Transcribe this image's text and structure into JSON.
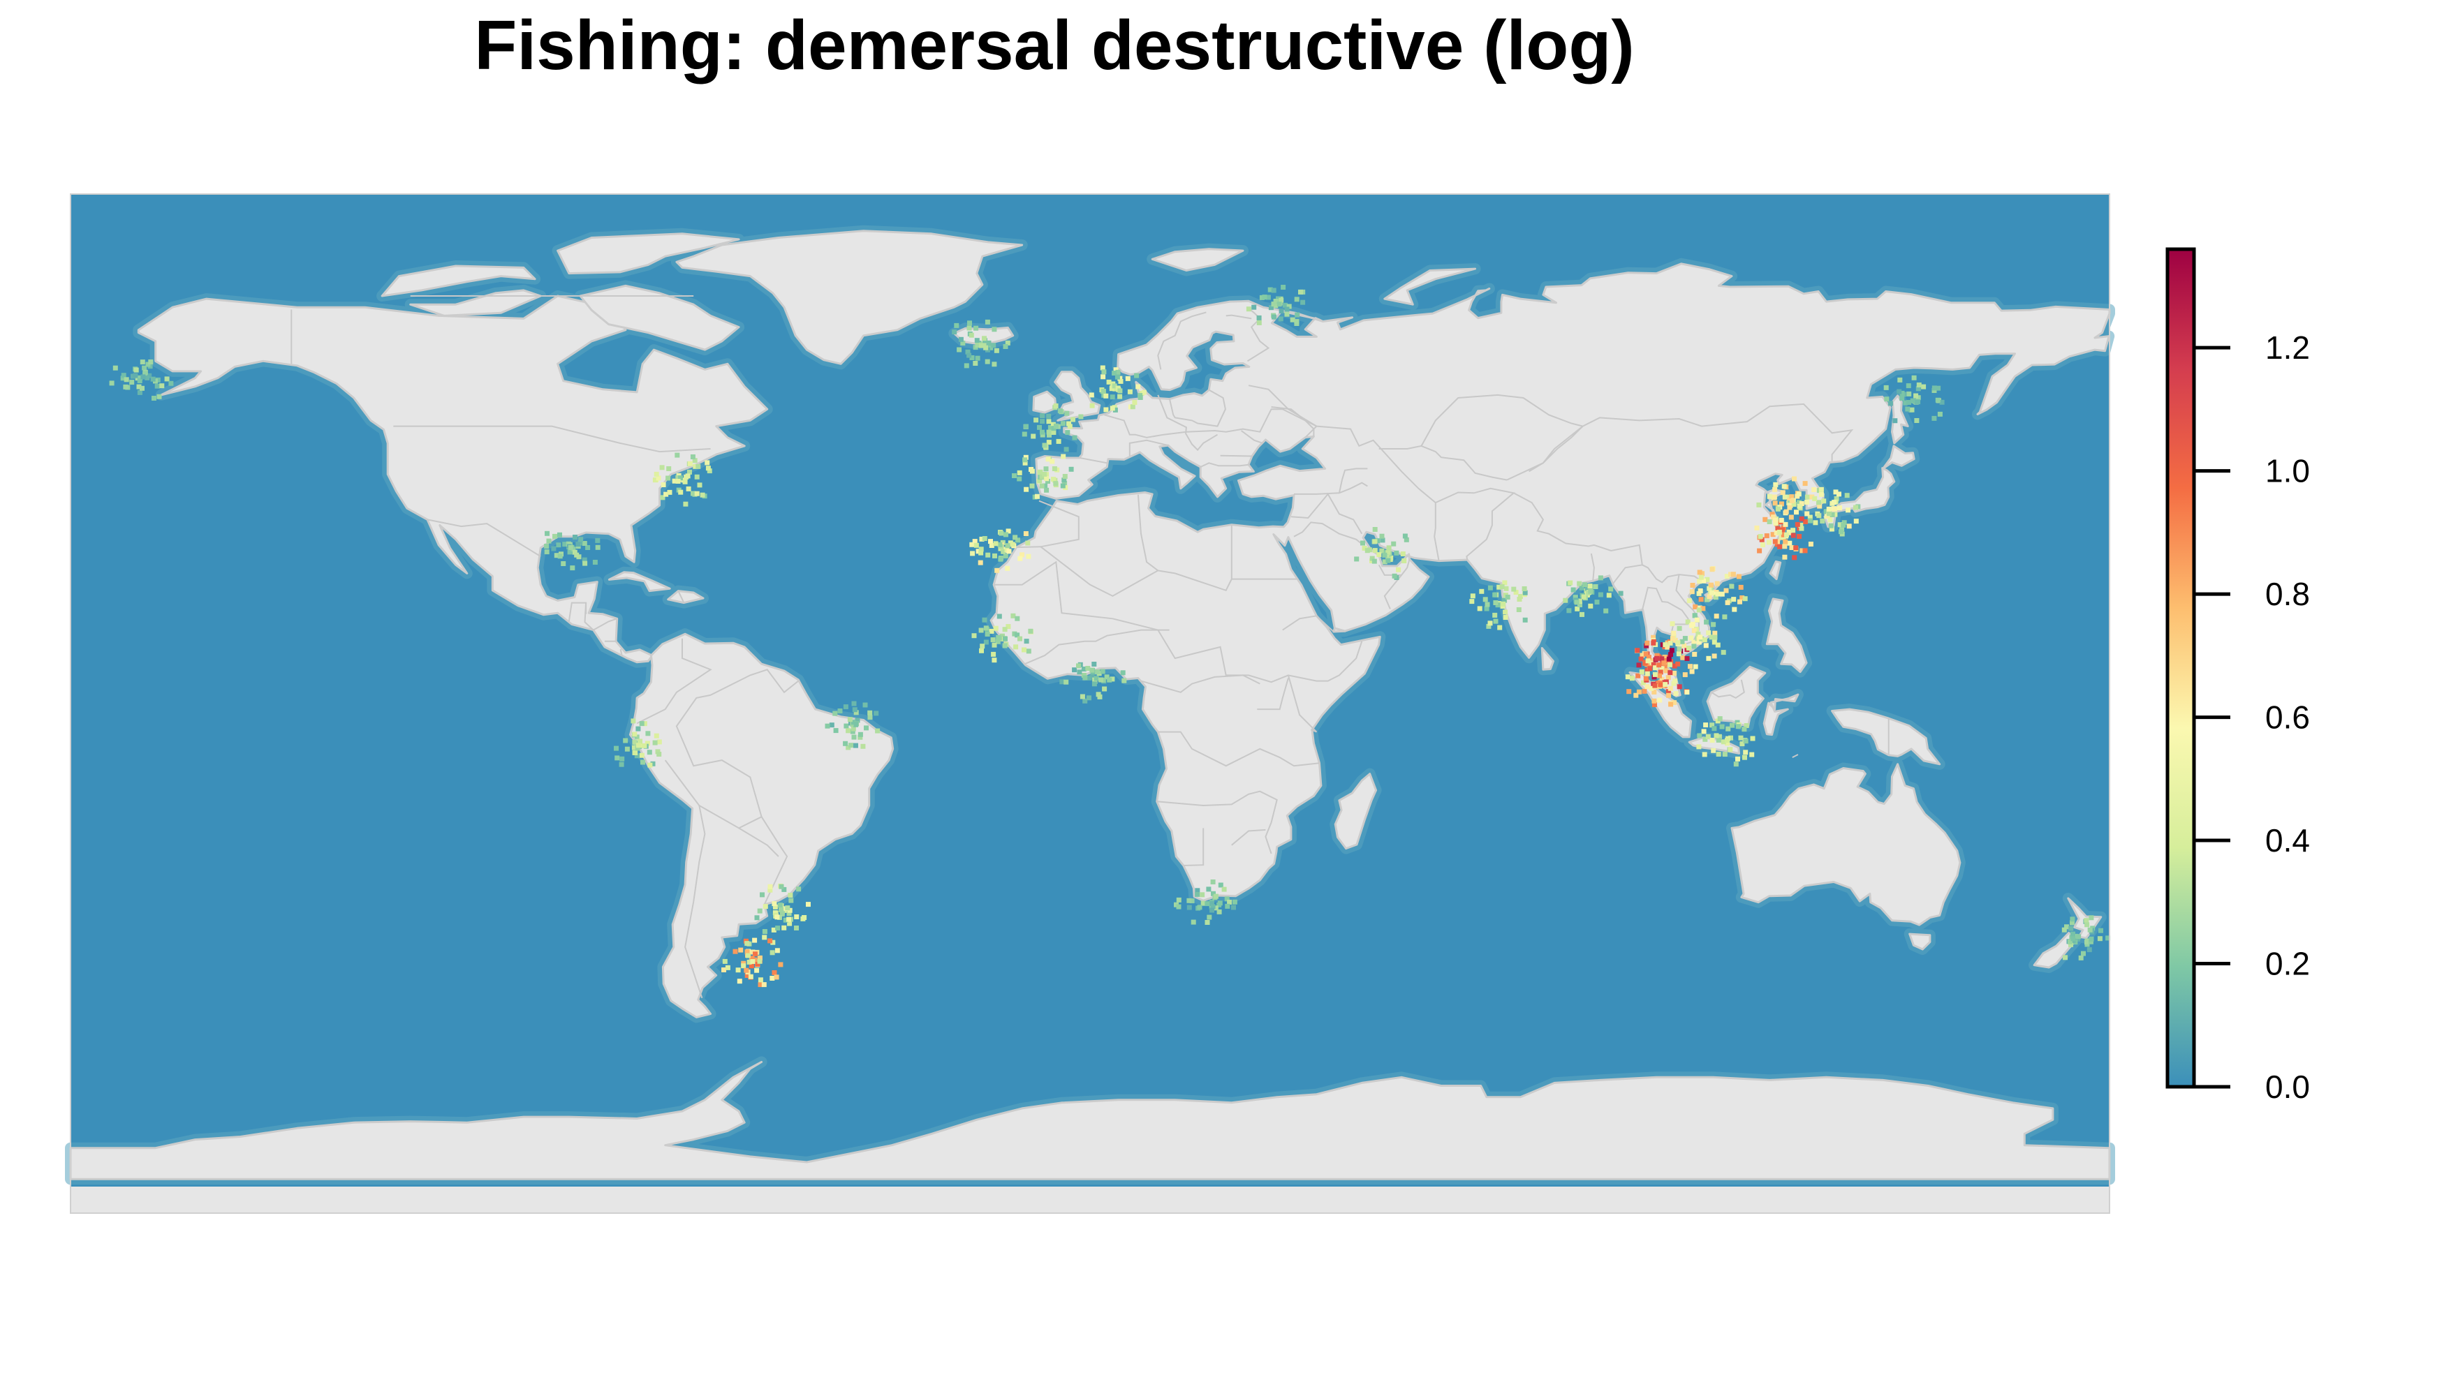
{
  "title": "Fishing: demersal destructive (log)",
  "colors": {
    "ocean": "#3b8fba",
    "land": "#e6e6e6",
    "border": "#c8c8c8",
    "scale": [
      "#3b8fba",
      "#7fc8a5",
      "#d6ee9b",
      "#fbf8b0",
      "#fdbe6f",
      "#f46d43",
      "#d43d4f",
      "#9e0142"
    ]
  },
  "legend": {
    "min": 0.0,
    "max": 1.36,
    "ticks": [
      {
        "value": 0.0,
        "label": "0.0"
      },
      {
        "value": 0.2,
        "label": "0.2"
      },
      {
        "value": 0.4,
        "label": "0.4"
      },
      {
        "value": 0.6,
        "label": "0.6"
      },
      {
        "value": 0.8,
        "label": "0.8"
      },
      {
        "value": 1.0,
        "label": "1.0"
      },
      {
        "value": 1.2,
        "label": "1.2"
      }
    ]
  },
  "hotspots": [
    {
      "region": "east-china-sea",
      "lon": 122,
      "lat": 30,
      "value": 1.0
    },
    {
      "region": "yellow-sea",
      "lon": 123,
      "lat": 36,
      "value": 0.7
    },
    {
      "region": "japan-sea",
      "lon": 130,
      "lat": 34,
      "value": 0.6
    },
    {
      "region": "gulf-of-thailand",
      "lon": 101,
      "lat": 8,
      "value": 1.3
    },
    {
      "region": "malacca-strait",
      "lon": 100,
      "lat": 4,
      "value": 1.1
    },
    {
      "region": "south-china-sea",
      "lon": 110,
      "lat": 20,
      "value": 0.8
    },
    {
      "region": "vietnam-coast",
      "lon": 107,
      "lat": 12,
      "value": 0.6
    },
    {
      "region": "java-sea",
      "lon": 112,
      "lat": -6,
      "value": 0.5
    },
    {
      "region": "patagonian-shelf",
      "lon": -60,
      "lat": -45,
      "value": 0.9
    },
    {
      "region": "uruguay-coast",
      "lon": -55,
      "lat": -36,
      "value": 0.5
    },
    {
      "region": "us-east-coast",
      "lon": -72,
      "lat": 40,
      "value": 0.5
    },
    {
      "region": "north-sea",
      "lon": 4,
      "lat": 56,
      "value": 0.5
    },
    {
      "region": "celtic-sea",
      "lon": -7,
      "lat": 49,
      "value": 0.4
    },
    {
      "region": "iberian-coast",
      "lon": -9,
      "lat": 41,
      "value": 0.5
    },
    {
      "region": "barents-sea",
      "lon": 33,
      "lat": 71,
      "value": 0.3
    },
    {
      "region": "persian-gulf",
      "lon": 52,
      "lat": 27,
      "value": 0.4
    },
    {
      "region": "west-india",
      "lon": 72,
      "lat": 18,
      "value": 0.4
    },
    {
      "region": "bay-of-bengal",
      "lon": 88,
      "lat": 20,
      "value": 0.4
    },
    {
      "region": "new-zealand",
      "lon": 174,
      "lat": -41,
      "value": 0.3
    },
    {
      "region": "west-africa",
      "lon": -16,
      "lat": 12,
      "value": 0.4
    },
    {
      "region": "gulf-of-guinea",
      "lon": 0,
      "lat": 5,
      "value": 0.3
    },
    {
      "region": "peru-coast",
      "lon": -80,
      "lat": -7,
      "value": 0.4
    },
    {
      "region": "brazil-ne",
      "lon": -42,
      "lat": -3,
      "value": 0.3
    },
    {
      "region": "bering-sea",
      "lon": -168,
      "lat": 58,
      "value": 0.3
    },
    {
      "region": "okhotsk-sea",
      "lon": 145,
      "lat": 54,
      "value": 0.3
    },
    {
      "region": "south-africa",
      "lon": 20,
      "lat": -35,
      "value": 0.3
    },
    {
      "region": "iceland",
      "lon": -20,
      "lat": 64,
      "value": 0.3
    },
    {
      "region": "canary-islands",
      "lon": -16,
      "lat": 28,
      "value": 0.6
    },
    {
      "region": "gulf-of-mexico",
      "lon": -92,
      "lat": 28,
      "value": 0.3
    }
  ]
}
